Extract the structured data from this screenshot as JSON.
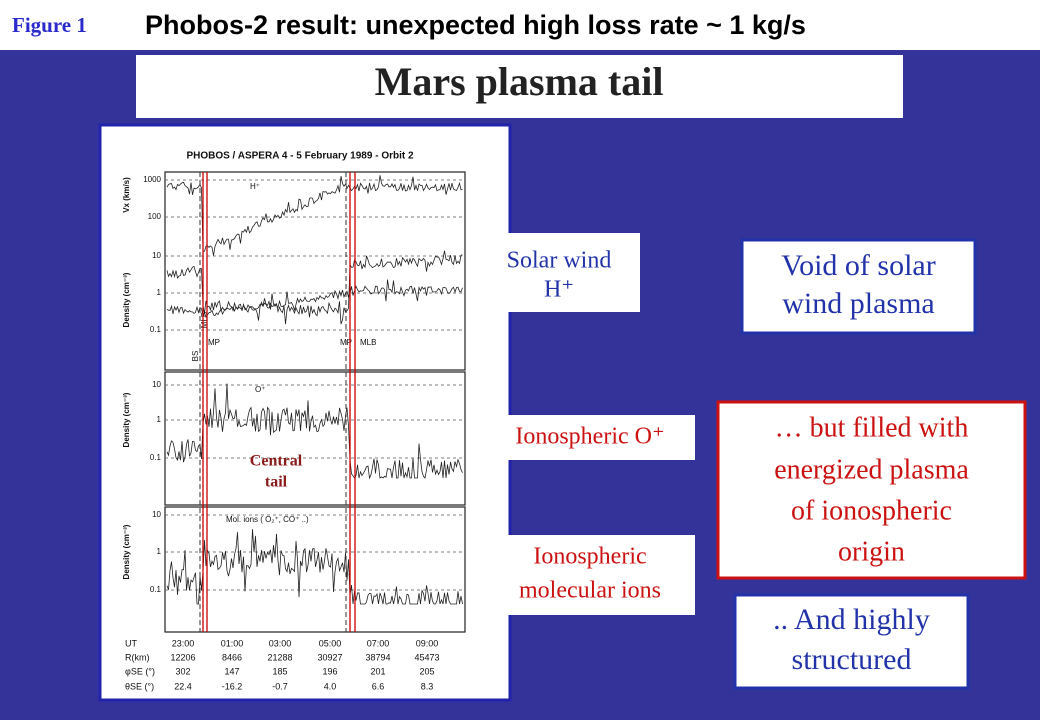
{
  "header": {
    "figure_label": "Figure 1",
    "title": "Phobos-2 result: unexpected high loss rate ~ 1 kg/s"
  },
  "slide_title": "Mars plasma tail",
  "figure": {
    "title": "PHOBOS / ASPERA  4 - 5 February 1989  -  Orbit 2",
    "panels": [
      {
        "axes": [
          {
            "label": "Vx (km/s)",
            "ticks": [
              "1000",
              "100"
            ]
          },
          {
            "label": "Density (cm⁻³)",
            "ticks": [
              "10",
              "1",
              "0.1"
            ]
          }
        ],
        "species": "H⁺",
        "markers": [
          "BS",
          "MLB",
          "MP",
          "MP",
          "MLB"
        ]
      },
      {
        "axes": [
          {
            "label": "Density (cm⁻³)",
            "ticks": [
              "10",
              "1",
              "0.1"
            ]
          }
        ],
        "species": "O⁺",
        "note": [
          "Central",
          "tail"
        ]
      },
      {
        "axes": [
          {
            "label": "Density (cm⁻³)",
            "ticks": [
              "10",
              "1",
              "0.1"
            ]
          }
        ],
        "species": "Mol. ions ( O₂⁺, CO⁺ ..)"
      }
    ],
    "table": {
      "rows": [
        [
          "UT",
          "23:00",
          "01:00",
          "03:00",
          "05:00",
          "07:00",
          "09:00"
        ],
        [
          "R(km)",
          "12206",
          "8466",
          "21288",
          "30927",
          "38794",
          "45473"
        ],
        [
          "φSE (°)",
          "302",
          "147",
          "185",
          "196",
          "201",
          "205"
        ],
        [
          "θSE (°)",
          "22.4",
          "-16.2",
          "-0.7",
          "4.0",
          "6.6",
          "8.3"
        ]
      ]
    }
  },
  "callouts": [
    {
      "lines": [
        "Solar wind",
        "H⁺"
      ]
    },
    {
      "lines": [
        "Void of solar",
        "wind plasma"
      ]
    },
    {
      "lines": [
        "Ionospheric O⁺"
      ]
    },
    {
      "lines": [
        "… but filled with",
        "energized plasma",
        "of ionospheric",
        "origin"
      ]
    },
    {
      "lines": [
        "Ionospheric",
        "molecular ions"
      ]
    },
    {
      "lines": [
        ".. And highly",
        "structured"
      ]
    }
  ]
}
